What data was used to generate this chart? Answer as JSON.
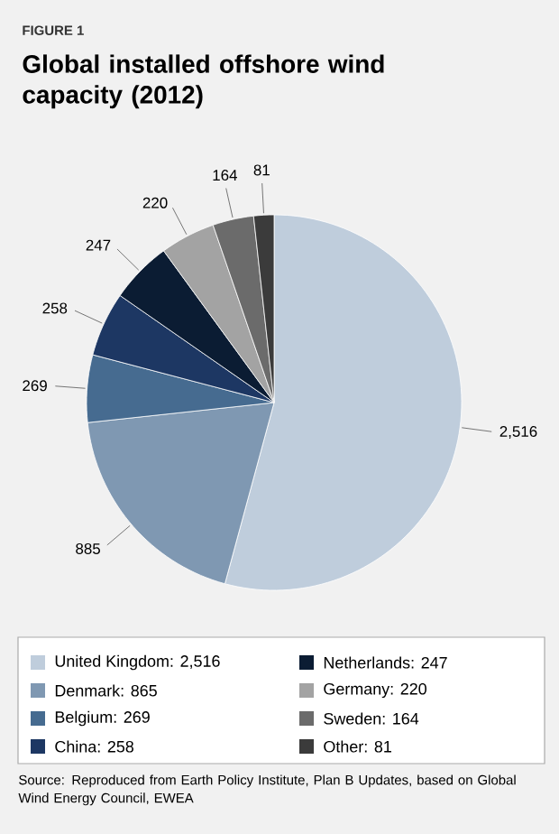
{
  "chart_data": {
    "type": "pie",
    "subtitle": "FIGURE 1",
    "title": "Global installed offshore wind capacity (2012)",
    "categories": [
      "United Kingdom: 2,516",
      "Denmark: 865",
      "Belgium: 269",
      "China: 258",
      "Netherlands: 247",
      "Germany: 220",
      "Sweden: 164",
      "Other: 81"
    ],
    "values": [
      2516,
      885,
      269,
      258,
      247,
      220,
      164,
      81
    ],
    "value_labels": [
      "2,516",
      "885",
      "269",
      "258",
      "247",
      "220",
      "164",
      "81"
    ],
    "colors": [
      "#bfcddc",
      "#7f98b2",
      "#466b90",
      "#1d3763",
      "#0b1c33",
      "#a3a3a3",
      "#6b6b6b",
      "#3b3b3b"
    ],
    "legend": "bottom",
    "annotations": [
      "Source: Reproduced from Earth Policy Institute, Plan B Updates, based on Global Wind Energy Council, EWEA"
    ]
  }
}
